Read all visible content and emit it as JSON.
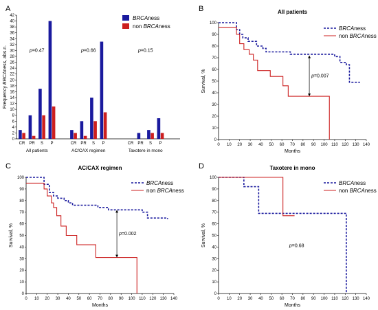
{
  "colors": {
    "brca": "#1a1a9e",
    "non_brca": "#cc1f1f",
    "arrow": "#000000"
  },
  "chart_data": [
    {
      "type": "bar",
      "panel": "A",
      "title": "",
      "ylabel_parts": [
        "Frequency ",
        "BRCA",
        "ness, abs.n."
      ],
      "ylim": [
        0,
        42
      ],
      "yticks": [
        0,
        2,
        4,
        6,
        8,
        10,
        12,
        14,
        16,
        18,
        20,
        22,
        24,
        26,
        28,
        30,
        32,
        34,
        36,
        38,
        40,
        42
      ],
      "legend": {
        "placement": "top-right",
        "entries": [
          {
            "key": "brca",
            "parts": [
              "",
              "BRCA",
              "ness"
            ]
          },
          {
            "key": "non_brca",
            "parts": [
              "non ",
              "BRCA",
              "ness"
            ]
          }
        ]
      },
      "groups": [
        {
          "label": "All patients",
          "p_label": "p",
          "p_value": "=0.47",
          "categories": [
            "CR",
            "PR",
            "S",
            "P"
          ],
          "brca": [
            3,
            8,
            17,
            40
          ],
          "non_brca": [
            2,
            1,
            8,
            11
          ]
        },
        {
          "label": "AC/CAX regimen",
          "p_label": "p",
          "p_value": "=0.66",
          "categories": [
            "CR",
            "PR",
            "S",
            "P"
          ],
          "brca": [
            3,
            6,
            14,
            33
          ],
          "non_brca": [
            2,
            1,
            6,
            9
          ]
        },
        {
          "label": "Taxotere in mono",
          "p_label": "p",
          "p_value": "=0.15",
          "categories": [
            "CR",
            "PR",
            "S",
            "P"
          ],
          "brca": [
            0,
            2,
            3,
            7
          ],
          "non_brca": [
            0,
            0,
            2,
            2
          ]
        }
      ]
    },
    {
      "type": "line",
      "panel": "B",
      "title": "All patients",
      "xlabel": "Months",
      "ylabel": "Survival, %",
      "xlim": [
        0,
        140
      ],
      "ylim": [
        0,
        100
      ],
      "xticks": [
        0,
        10,
        20,
        30,
        40,
        50,
        60,
        70,
        80,
        90,
        100,
        110,
        120,
        130,
        140
      ],
      "yticks": [
        0,
        10,
        20,
        30,
        40,
        50,
        60,
        70,
        80,
        90,
        100
      ],
      "legend": {
        "placement": "top-right"
      },
      "annotation": {
        "p_label": "p",
        "p_value": "=0.007",
        "x": 86,
        "y_top": 72,
        "y_bottom": 37
      },
      "series": [
        {
          "key": "brca",
          "parts": [
            "",
            "BRCA",
            "ness"
          ],
          "style": "dashed",
          "points": [
            [
              0,
              100
            ],
            [
              17,
              100
            ],
            [
              17,
              94
            ],
            [
              20,
              90
            ],
            [
              23,
              87
            ],
            [
              28,
              84
            ],
            [
              36,
              80
            ],
            [
              42,
              78
            ],
            [
              45,
              75
            ],
            [
              68,
              73
            ],
            [
              110,
              71
            ],
            [
              115,
              66
            ],
            [
              121,
              64
            ],
            [
              124,
              49
            ],
            [
              134,
              49
            ]
          ]
        },
        {
          "key": "non_brca",
          "parts": [
            "non ",
            "BRCA",
            "ness"
          ],
          "style": "solid",
          "points": [
            [
              0,
              96
            ],
            [
              14,
              96
            ],
            [
              16,
              96
            ],
            [
              17,
              90
            ],
            [
              20,
              82
            ],
            [
              24,
              77
            ],
            [
              29,
              73
            ],
            [
              33,
              68
            ],
            [
              37,
              59
            ],
            [
              49,
              54
            ],
            [
              56,
              54
            ],
            [
              61,
              46
            ],
            [
              66,
              37
            ],
            [
              105,
              37
            ],
            [
              105,
              0
            ]
          ]
        }
      ]
    },
    {
      "type": "line",
      "panel": "C",
      "title": "AC/CAX regimen",
      "xlabel": "Months",
      "ylabel": "Survival, %",
      "xlim": [
        0,
        140
      ],
      "ylim": [
        0,
        100
      ],
      "xticks": [
        0,
        10,
        20,
        30,
        40,
        50,
        60,
        70,
        80,
        90,
        100,
        110,
        120,
        130,
        140
      ],
      "yticks": [
        0,
        10,
        20,
        30,
        40,
        50,
        60,
        70,
        80,
        90,
        100
      ],
      "legend": {
        "placement": "top-right"
      },
      "annotation": {
        "p_label": "p",
        "p_value": "=0.002",
        "x": 86,
        "y_top": 72,
        "y_bottom": 31
      },
      "series": [
        {
          "key": "brca",
          "parts": [
            "",
            "BRCA",
            "ness"
          ],
          "style": "dashed",
          "points": [
            [
              0,
              100
            ],
            [
              17,
              100
            ],
            [
              17,
              94
            ],
            [
              22,
              87
            ],
            [
              26,
              84
            ],
            [
              30,
              82
            ],
            [
              36,
              80
            ],
            [
              40,
              78
            ],
            [
              44,
              76
            ],
            [
              68,
              74
            ],
            [
              78,
              72
            ],
            [
              110,
              70
            ],
            [
              115,
              65
            ],
            [
              134,
              64
            ]
          ]
        },
        {
          "key": "non_brca",
          "parts": [
            "non ",
            "BRCA",
            "ness"
          ],
          "style": "solid",
          "points": [
            [
              0,
              95
            ],
            [
              16,
              95
            ],
            [
              17,
              90
            ],
            [
              20,
              84
            ],
            [
              24,
              78
            ],
            [
              26,
              74
            ],
            [
              29,
              67
            ],
            [
              33,
              58
            ],
            [
              38,
              50
            ],
            [
              48,
              42
            ],
            [
              66,
              31
            ],
            [
              105,
              31
            ],
            [
              105,
              0
            ]
          ]
        }
      ]
    },
    {
      "type": "line",
      "panel": "D",
      "title": "Taxotere in mono",
      "xlabel": "Months",
      "ylabel": "Survival, %",
      "xlim": [
        0,
        140
      ],
      "ylim": [
        0,
        100
      ],
      "xticks": [
        0,
        10,
        20,
        30,
        40,
        50,
        60,
        70,
        80,
        90,
        100,
        110,
        120,
        130,
        140
      ],
      "yticks": [
        0,
        10,
        20,
        30,
        40,
        50,
        60,
        70,
        80,
        90,
        100
      ],
      "legend": {
        "placement": "top-right"
      },
      "annotation": {
        "p_label": "p",
        "p_value": "=0.68"
      },
      "series": [
        {
          "key": "brca",
          "parts": [
            "",
            "BRCA",
            "ness"
          ],
          "style": "dashed",
          "points": [
            [
              0,
              100
            ],
            [
              24,
              100
            ],
            [
              24,
              92
            ],
            [
              36,
              92
            ],
            [
              38,
              69
            ],
            [
              121,
              69
            ],
            [
              121,
              0
            ]
          ]
        },
        {
          "key": "non_brca",
          "parts": [
            "non ",
            "BRCA",
            "ness"
          ],
          "style": "solid",
          "points": [
            [
              0,
              100
            ],
            [
              59,
              100
            ],
            [
              61,
              67
            ],
            [
              72,
              67
            ]
          ]
        }
      ]
    }
  ]
}
